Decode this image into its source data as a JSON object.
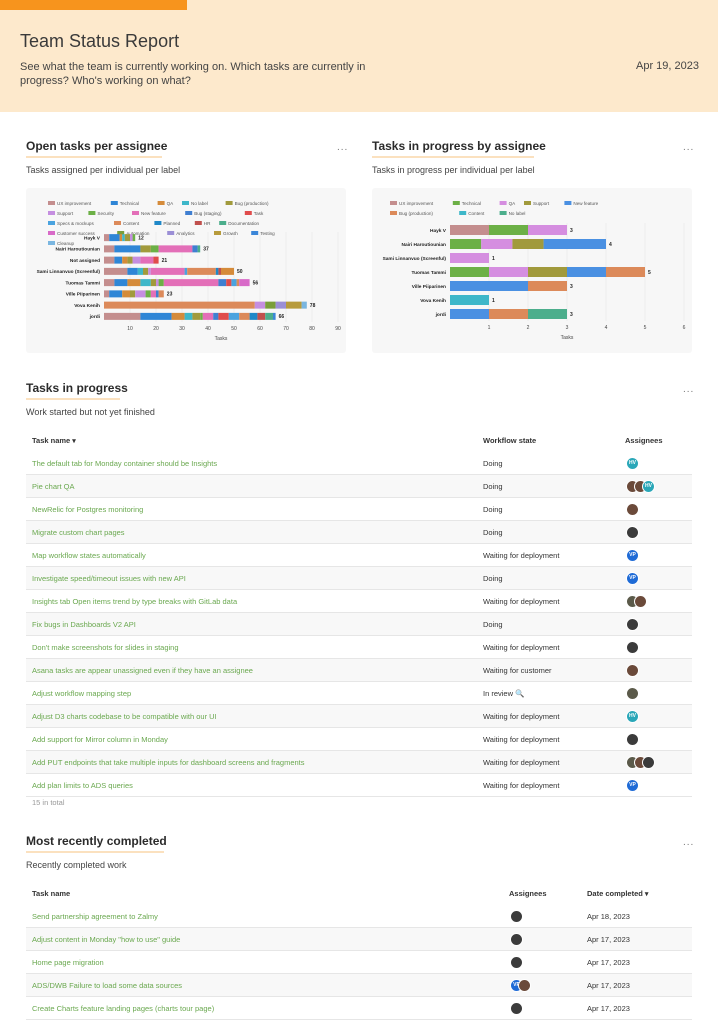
{
  "header": {
    "title": "Team Status Report",
    "subtitle": "See what the team is currently working on. Which tasks are currently in progress? Who's working on what?",
    "date": "Apr 19, 2023"
  },
  "colors": {
    "accent": "#f7941d",
    "header_bg": "#fde9cc",
    "link": "#6aa84f"
  },
  "more_label": "...",
  "open_tasks": {
    "title": "Open tasks per assignee",
    "subtitle": "Tasks assigned per individual per label"
  },
  "in_progress_chart": {
    "title": "Tasks in progress by assignee",
    "subtitle": "Tasks in progress per individual per label"
  },
  "chart_data": [
    {
      "type": "bar",
      "orientation": "horizontal",
      "stacked": true,
      "xlabel": "Tasks",
      "xlim": [
        0,
        90
      ],
      "xticks": [
        10,
        20,
        30,
        40,
        50,
        60,
        70,
        80,
        90
      ],
      "legend_position": "top",
      "legend": [
        {
          "name": "UX improvement",
          "color": "#c48e8e"
        },
        {
          "name": "Technical",
          "color": "#2f86d6"
        },
        {
          "name": "QA",
          "color": "#d58b3a"
        },
        {
          "name": "No label",
          "color": "#3eb7c9"
        },
        {
          "name": "Bug (production)",
          "color": "#a19a3c"
        },
        {
          "name": "Support",
          "color": "#c58ee0"
        },
        {
          "name": "Security",
          "color": "#6cb046"
        },
        {
          "name": "New feature",
          "color": "#e36fb8"
        },
        {
          "name": "Bug (staging)",
          "color": "#3f7fd1"
        },
        {
          "name": "Task",
          "color": "#e04c4c"
        },
        {
          "name": "Specs & mockups",
          "color": "#4aa3df"
        },
        {
          "name": "Content",
          "color": "#dc8a5a"
        },
        {
          "name": "Planned",
          "color": "#1f88c8"
        },
        {
          "name": "HR",
          "color": "#c0504d"
        },
        {
          "name": "Documentation",
          "color": "#4cae8c"
        },
        {
          "name": "Customer success",
          "color": "#d86ac8"
        },
        {
          "name": "Automation",
          "color": "#7a9e3a"
        },
        {
          "name": "Analytics",
          "color": "#9b8fd6"
        },
        {
          "name": "Growth",
          "color": "#b79b3c"
        },
        {
          "name": "Testing",
          "color": "#3b86d8"
        },
        {
          "name": "Cleanup",
          "color": "#7ab6e0"
        }
      ],
      "categories": [
        "Hayk V",
        "Nairi Haroutiounian",
        "Not assigned",
        "Sami Linnanvuo (Screenful)",
        "Tuomas Tammi",
        "Ville Piiparinen",
        "Vova Kenih",
        "jordi"
      ],
      "totals": [
        12,
        37,
        21,
        50,
        56,
        23,
        78,
        66
      ],
      "segments": [
        [
          [
            0,
            2
          ],
          [
            1,
            4
          ],
          [
            2,
            1
          ],
          [
            3,
            1
          ],
          [
            4,
            2
          ],
          [
            5,
            1
          ],
          [
            6,
            1
          ]
        ],
        [
          [
            0,
            4
          ],
          [
            1,
            10
          ],
          [
            4,
            4
          ],
          [
            6,
            3
          ],
          [
            7,
            13
          ],
          [
            8,
            2
          ],
          [
            14,
            1
          ]
        ],
        [
          [
            0,
            4
          ],
          [
            1,
            3
          ],
          [
            2,
            2
          ],
          [
            4,
            2
          ],
          [
            5,
            3
          ],
          [
            7,
            5
          ],
          [
            9,
            2
          ]
        ],
        [
          [
            0,
            9
          ],
          [
            1,
            4
          ],
          [
            3,
            2
          ],
          [
            4,
            2
          ],
          [
            5,
            1
          ],
          [
            7,
            13
          ],
          [
            10,
            1
          ],
          [
            11,
            11
          ],
          [
            12,
            1
          ],
          [
            13,
            1
          ],
          [
            2,
            5
          ]
        ],
        [
          [
            0,
            4
          ],
          [
            1,
            5
          ],
          [
            2,
            5
          ],
          [
            3,
            4
          ],
          [
            4,
            2
          ],
          [
            5,
            1
          ],
          [
            6,
            2
          ],
          [
            7,
            21
          ],
          [
            8,
            3
          ],
          [
            9,
            2
          ],
          [
            10,
            2
          ],
          [
            11,
            1
          ],
          [
            15,
            4
          ]
        ],
        [
          [
            0,
            2
          ],
          [
            1,
            5
          ],
          [
            2,
            3
          ],
          [
            4,
            2
          ],
          [
            5,
            4
          ],
          [
            6,
            2
          ],
          [
            7,
            2
          ],
          [
            8,
            1
          ],
          [
            11,
            2
          ]
        ],
        [
          [
            11,
            58
          ],
          [
            5,
            4
          ],
          [
            16,
            4
          ],
          [
            17,
            4
          ],
          [
            18,
            6
          ],
          [
            20,
            2
          ]
        ],
        [
          [
            0,
            14
          ],
          [
            1,
            12
          ],
          [
            2,
            5
          ],
          [
            3,
            3
          ],
          [
            4,
            3
          ],
          [
            6,
            1
          ],
          [
            7,
            4
          ],
          [
            8,
            2
          ],
          [
            9,
            4
          ],
          [
            10,
            4
          ],
          [
            11,
            4
          ],
          [
            12,
            3
          ],
          [
            13,
            3
          ],
          [
            14,
            3
          ],
          [
            19,
            1
          ]
        ]
      ]
    },
    {
      "type": "bar",
      "orientation": "horizontal",
      "stacked": true,
      "xlabel": "Tasks",
      "xlim": [
        0,
        6
      ],
      "xticks": [
        1,
        2,
        3,
        4,
        5,
        6
      ],
      "legend_position": "top",
      "legend": [
        {
          "name": "UX improvement",
          "color": "#c48e8e"
        },
        {
          "name": "Technical",
          "color": "#6cb046"
        },
        {
          "name": "QA",
          "color": "#d58ee0"
        },
        {
          "name": "Support",
          "color": "#a19a3c"
        },
        {
          "name": "New feature",
          "color": "#4a90e2"
        },
        {
          "name": "Bug (production)",
          "color": "#dc8a5a"
        },
        {
          "name": "Content",
          "color": "#3eb7c9"
        },
        {
          "name": "No label",
          "color": "#4cae8c"
        }
      ],
      "categories": [
        "Hayk V",
        "Nairi Haroutiounian",
        "Sami Linnanvuo (Screenful)",
        "Tuomas Tammi",
        "Ville Piiparinen",
        "Vova Kenih",
        "jordi"
      ],
      "totals": [
        3,
        4,
        1,
        5,
        3,
        1,
        3
      ],
      "segments": [
        [
          [
            0,
            1
          ],
          [
            1,
            1
          ],
          [
            2,
            1
          ]
        ],
        [
          [
            1,
            0.8
          ],
          [
            2,
            0.8
          ],
          [
            3,
            0.8
          ],
          [
            4,
            1.6
          ]
        ],
        [
          [
            2,
            1
          ]
        ],
        [
          [
            1,
            1
          ],
          [
            2,
            1
          ],
          [
            3,
            1
          ],
          [
            4,
            1
          ],
          [
            5,
            1
          ]
        ],
        [
          [
            4,
            2
          ],
          [
            5,
            1
          ]
        ],
        [
          [
            6,
            1
          ]
        ],
        [
          [
            4,
            1
          ],
          [
            5,
            1
          ],
          [
            7,
            1
          ]
        ]
      ]
    }
  ],
  "in_progress": {
    "title": "Tasks in progress",
    "subtitle": "Work started but not yet finished",
    "columns": {
      "name": "Task name",
      "state": "Workflow state",
      "assignees": "Assignees"
    },
    "rows": [
      {
        "name": "The default tab for Monday container should be Insights",
        "state": "Doing",
        "avatars": [
          "t"
        ]
      },
      {
        "name": "Pie chart QA",
        "state": "Doing",
        "avatars": [
          "d",
          "d",
          "t"
        ]
      },
      {
        "name": "NewRelic for Postgres monitoring",
        "state": "Doing",
        "avatars": [
          "d"
        ]
      },
      {
        "name": "Migrate custom chart pages",
        "state": "Doing",
        "avatars": [
          "k"
        ]
      },
      {
        "name": "Map workflow states automatically",
        "state": "Waiting for deployment",
        "avatars": [
          "v"
        ]
      },
      {
        "name": "Investigate speed/timeout issues with new API",
        "state": "Doing",
        "avatars": [
          "v"
        ]
      },
      {
        "name": "Insights tab Open items trend by type breaks with GitLab data",
        "state": "Waiting for deployment",
        "avatars": [
          "g",
          "d"
        ]
      },
      {
        "name": "Fix bugs in Dashboards V2 API",
        "state": "Doing",
        "avatars": [
          "k"
        ]
      },
      {
        "name": "Don't make screenshots for slides in staging",
        "state": "Waiting for deployment",
        "avatars": [
          "k"
        ]
      },
      {
        "name": "Asana tasks are appear unassigned even if they have an assignee",
        "state": "Waiting for customer",
        "avatars": [
          "d"
        ]
      },
      {
        "name": "Adjust workflow mapping step",
        "state": "In review 🔍",
        "avatars": [
          "g"
        ]
      },
      {
        "name": "Adjust D3 charts codebase to be compatible with our UI",
        "state": "Waiting for deployment",
        "avatars": [
          "t"
        ]
      },
      {
        "name": "Add support for Mirror column in Monday",
        "state": "Waiting for deployment",
        "avatars": [
          "k"
        ]
      },
      {
        "name": "Add PUT endpoints that take multiple inputs for dashboard screens and fragments",
        "state": "Waiting for deployment",
        "avatars": [
          "g",
          "d",
          "k"
        ]
      },
      {
        "name": "Add plan limits to ADS queries",
        "state": "Waiting for deployment",
        "avatars": [
          "v"
        ]
      }
    ],
    "total": "15 in total"
  },
  "completed": {
    "title": "Most recently completed",
    "subtitle": "Recently completed work",
    "columns": {
      "name": "Task name",
      "assignees": "Assignees",
      "date": "Date completed"
    },
    "rows": [
      {
        "name": "Send partnership agreement to Zalmy",
        "date": "Apr 18, 2023",
        "avatars": [
          "k"
        ]
      },
      {
        "name": "Adjust content in Monday \"how to use\" guide",
        "date": "Apr 17, 2023",
        "avatars": [
          "k"
        ]
      },
      {
        "name": "Home page migration",
        "date": "Apr 17, 2023",
        "avatars": [
          "k"
        ]
      },
      {
        "name": "ADS/DWB Failure to load some data sources",
        "date": "Apr 17, 2023",
        "avatars": [
          "v",
          "d"
        ]
      },
      {
        "name": "Create Charts feature landing pages (charts tour page)",
        "date": "Apr 17, 2023",
        "avatars": [
          "k"
        ]
      }
    ]
  },
  "avatar_initials": {
    "v": "VP",
    "t": "HV"
  }
}
